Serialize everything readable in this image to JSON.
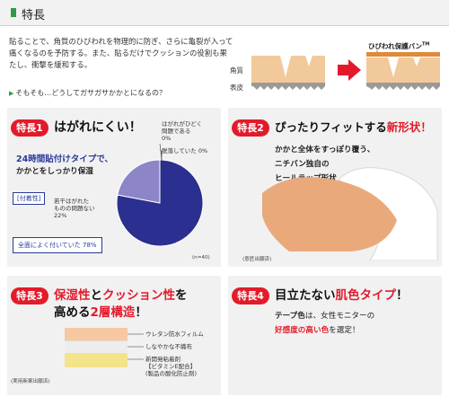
{
  "header": {
    "title": "特長"
  },
  "intro": {
    "text": "貼ることで、角質のひびわれを物理的に防ぎ、さらに亀裂が入って痛くなるのを予防する。また、貼るだけでクッションの役割も果たし、衝撃を緩和する。",
    "why_link": "そもそも…どうしてガサガサかかとになるの？"
  },
  "diagram": {
    "label_kakushitsu": "角質",
    "label_hyohi": "表皮",
    "banner": "ひびわれ保護バン",
    "tm": "TM"
  },
  "feature1": {
    "badge": "特長1",
    "title": "はがれにくい！",
    "sub_blue": "24時間貼付けタイプで、",
    "sub_line2": "かかとをしっかり保湿",
    "tag": "[付着性]",
    "pie": {
      "label_problem": "はがれがひどく\n問題である\n0%",
      "label_peeled": "脱落していた 0%",
      "label_some": "若干はがれた\nものの問題ない\n22%",
      "label_full": "全面によく付いていた 78%",
      "footnote": "(n=40)"
    },
    "chart_data": {
      "type": "pie",
      "categories": [
        "全面によく付いていた",
        "若干はがれたものの問題ない",
        "はがれがひどく問題である",
        "脱落していた"
      ],
      "values": [
        78,
        22,
        0,
        0
      ],
      "colors": [
        "#2b2f8f",
        "#8c85c8",
        "#cccccc",
        "#cccccc"
      ]
    }
  },
  "feature2": {
    "badge": "特長2",
    "title_a": "ぴったりフィットする",
    "title_b": "新形状！",
    "line1": "かかと全体をすっぽり覆う、",
    "line2": "ニチバン独自の",
    "line3": "ヒールラップ形状",
    "footnote": "(意匠出願済)"
  },
  "feature3": {
    "badge": "特長3",
    "title_a1": "保湿性",
    "title_a2": "と",
    "title_a3": "クッション性",
    "title_a4": "を",
    "title_b1": "高める",
    "title_b2": "2層構造",
    "title_b3": "！",
    "layer1": "ウレタン防水フィルム",
    "layer2": "しなやかな不織布",
    "layer3": "新開発粘着剤\n【ビタミンE配合】\n(製品の酸化防止剤)",
    "footnote": "(実用新案出願済)"
  },
  "feature4": {
    "badge": "特長4",
    "title_a": "目立たない",
    "title_b": "肌色タイプ",
    "title_c": "！",
    "line1_a": "テープ色",
    "line1_b": "は、女性モニターの",
    "line2_a": "好感度の高い色",
    "line2_b": "を選定！"
  }
}
